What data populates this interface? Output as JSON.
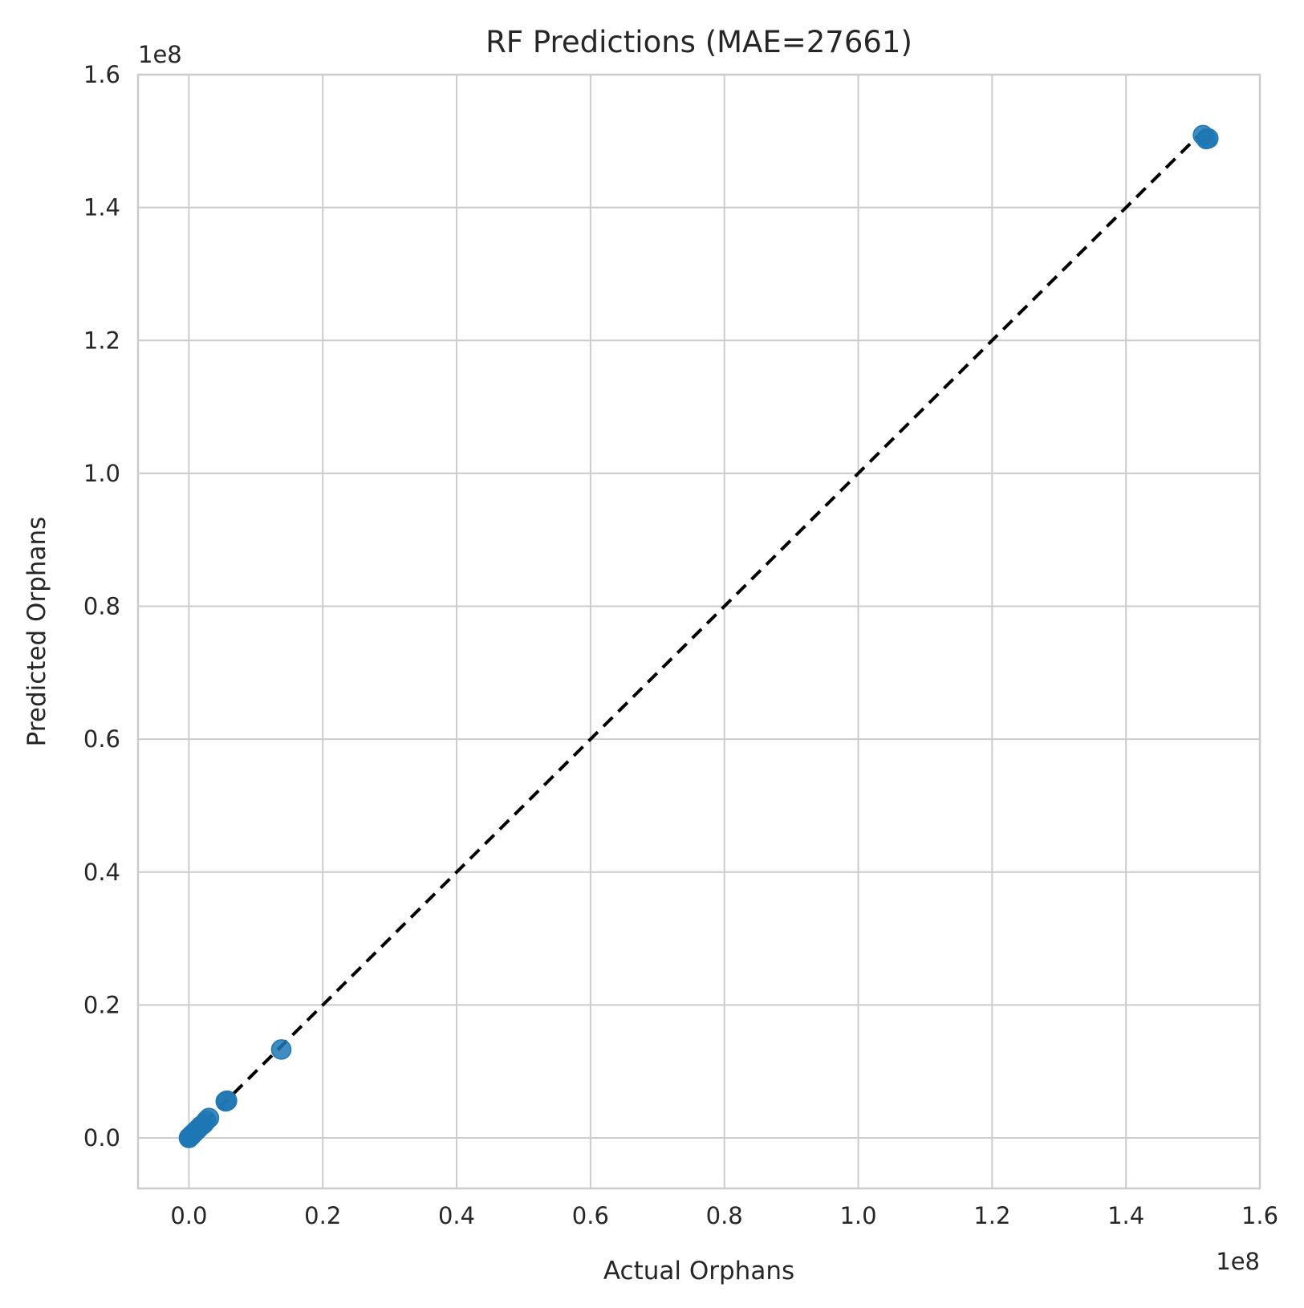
{
  "chart_data": {
    "type": "scatter",
    "title": "RF Predictions (MAE=27661)",
    "xlabel": "Actual Orphans",
    "ylabel": "Predicted Orphans",
    "x_offset_label": "1e8",
    "y_offset_label": "1e8",
    "xlim": [
      -0.076,
      1.6
    ],
    "ylim": [
      -0.076,
      1.6
    ],
    "xticks": [
      "0.0",
      "0.2",
      "0.4",
      "0.6",
      "0.8",
      "1.0",
      "1.2",
      "1.4",
      "1.6"
    ],
    "yticks": [
      "0.0",
      "0.2",
      "0.4",
      "0.6",
      "0.8",
      "1.0",
      "1.2",
      "1.4",
      "1.6"
    ],
    "grid": true,
    "point_color": "#1f77b4",
    "line_color": "#000000",
    "points": [
      {
        "x": 0.0,
        "y": 0.0
      },
      {
        "x": 0.001,
        "y": 0.001
      },
      {
        "x": 0.002,
        "y": 0.002
      },
      {
        "x": 0.003,
        "y": 0.003
      },
      {
        "x": 0.004,
        "y": 0.004
      },
      {
        "x": 0.005,
        "y": 0.005
      },
      {
        "x": 0.007,
        "y": 0.007
      },
      {
        "x": 0.01,
        "y": 0.01
      },
      {
        "x": 0.014,
        "y": 0.014
      },
      {
        "x": 0.018,
        "y": 0.018
      },
      {
        "x": 0.022,
        "y": 0.021
      },
      {
        "x": 0.026,
        "y": 0.026
      },
      {
        "x": 0.03,
        "y": 0.03
      },
      {
        "x": 0.055,
        "y": 0.055
      },
      {
        "x": 0.057,
        "y": 0.056
      },
      {
        "x": 0.138,
        "y": 0.133
      },
      {
        "x": 1.515,
        "y": 1.509
      },
      {
        "x": 1.52,
        "y": 1.503
      },
      {
        "x": 1.523,
        "y": 1.504
      }
    ],
    "reference_line": {
      "x": [
        0.0,
        1.52
      ],
      "y": [
        0.0,
        1.52
      ]
    }
  }
}
